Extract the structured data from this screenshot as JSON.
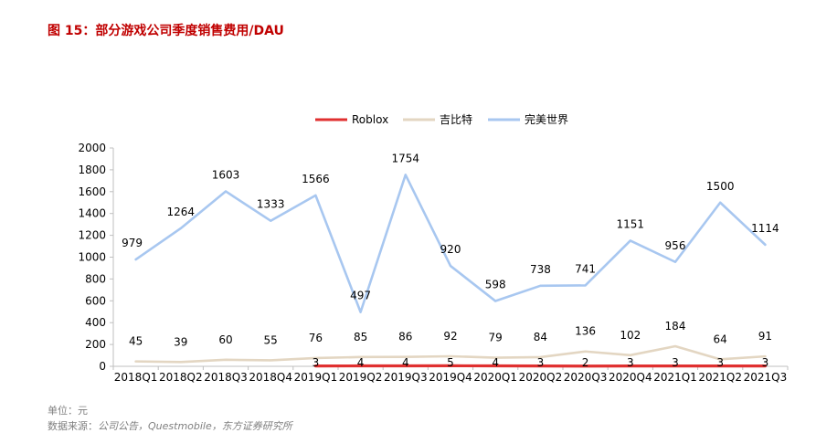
{
  "figure_title": "图 15：部分游戏公司季度销售费用/DAU",
  "unit_note": "单位：元",
  "source_label": "数据来源：",
  "source_text": "公司公告，Questmobile，东方证券研究所",
  "colors": {
    "title": "#c00000",
    "Roblox": "#e03030",
    "吉比特": "#e3d6c2",
    "完美世界": "#a8c7f0",
    "axis": "#bfbfbf",
    "text": "#000000"
  },
  "chart_data": {
    "type": "line",
    "title": "",
    "xlabel": "",
    "ylabel": "",
    "ylim": [
      0,
      2000
    ],
    "yticks": [
      "0",
      "200",
      "400",
      "600",
      "800",
      "1000",
      "1200",
      "1400",
      "1600",
      "1800",
      "2000"
    ],
    "grid": false,
    "legend_position": "top-center",
    "categories": [
      "2018Q1",
      "2018Q2",
      "2018Q3",
      "2018Q4",
      "2019Q1",
      "2019Q2",
      "2019Q3",
      "2019Q4",
      "2020Q1",
      "2020Q2",
      "2020Q3",
      "2020Q4",
      "2021Q1",
      "2021Q2",
      "2021Q3"
    ],
    "series": [
      {
        "name": "Roblox",
        "values": [
          null,
          null,
          null,
          null,
          3,
          4,
          4,
          5,
          4,
          3,
          2,
          3,
          3,
          3,
          3
        ]
      },
      {
        "name": "吉比特",
        "values": [
          45,
          39,
          60,
          55,
          76,
          85,
          86,
          92,
          79,
          84,
          136,
          102,
          184,
          64,
          91
        ]
      },
      {
        "name": "完美世界",
        "values": [
          979,
          1264,
          1603,
          1333,
          1566,
          497,
          1754,
          920,
          598,
          738,
          741,
          1151,
          956,
          1500,
          1114
        ]
      }
    ]
  }
}
